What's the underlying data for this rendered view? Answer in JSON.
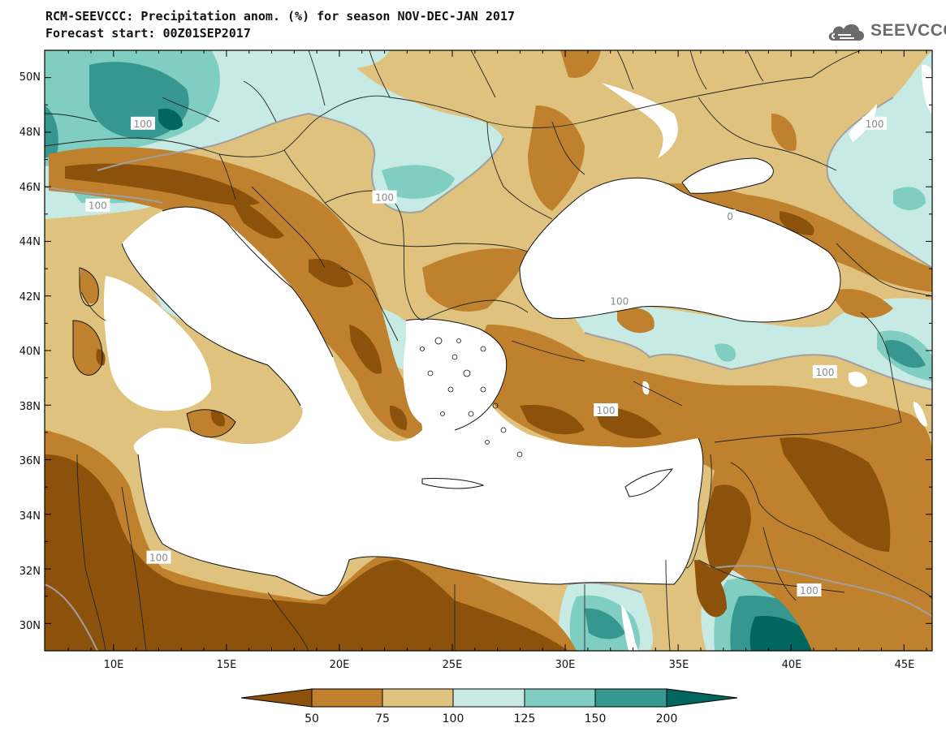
{
  "title": {
    "line1": "RCM-SEEVCCC: Precipitation anom. (%) for season NOV-DEC-JAN 2017",
    "line2": "Forecast start: 00Z01SEP2017"
  },
  "logo": {
    "text": "SEEVCCC",
    "icon": "cloud-icon"
  },
  "colors": {
    "c_lt50": "#8c510a",
    "c_50_75": "#bf812d",
    "c_75_100": "#dfc27d",
    "c_100_125": "#c7eae5",
    "c_125_150": "#80cdc1",
    "c_150_200": "#35978f",
    "c_gt200": "#01665e",
    "sea": "#ffffff",
    "contour": "#a0a0a0",
    "border": "#222222"
  },
  "axes": {
    "x_ticks": [
      "10E",
      "15E",
      "20E",
      "25E",
      "30E",
      "35E",
      "40E",
      "45E"
    ],
    "y_ticks": [
      "50N",
      "48N",
      "46N",
      "44N",
      "42N",
      "40N",
      "38N",
      "36N",
      "34N",
      "32N",
      "30N"
    ]
  },
  "contour_labels": [
    {
      "text": "100",
      "lon": 11.3,
      "lat": 48.3
    },
    {
      "text": "100",
      "lon": 22.0,
      "lat": 45.6
    },
    {
      "text": "100",
      "lon": 9.3,
      "lat": 45.3
    },
    {
      "text": "100",
      "lon": 43.7,
      "lat": 48.3
    },
    {
      "text": "100",
      "lon": 32.4,
      "lat": 41.8
    },
    {
      "text": "100",
      "lon": 41.5,
      "lat": 39.2
    },
    {
      "text": "100",
      "lon": 31.8,
      "lat": 37.8
    },
    {
      "text": "100",
      "lon": 12.0,
      "lat": 32.4
    },
    {
      "text": "100",
      "lon": 40.8,
      "lat": 31.2
    },
    {
      "text": "0",
      "lon": 37.3,
      "lat": 44.9
    }
  ],
  "colorbar": {
    "labels": [
      "50",
      "75",
      "100",
      "125",
      "150",
      "200"
    ]
  }
}
